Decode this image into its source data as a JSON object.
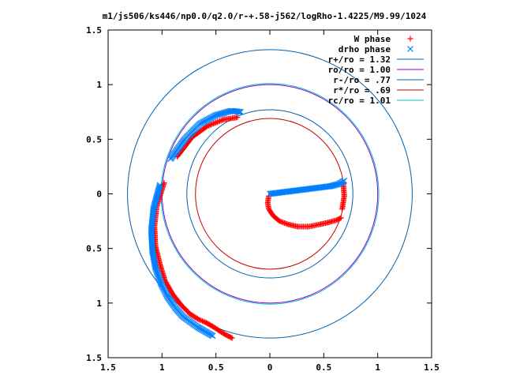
{
  "chart_data": {
    "type": "scatter",
    "title": "m1/js506/ks446/np0.0/q2.0/r-+.58-j562/logRho-1.4225/M9.99/1024",
    "xlabel": "",
    "ylabel": "",
    "xlim": [
      -1.5,
      1.5
    ],
    "ylim": [
      -1.5,
      1.5
    ],
    "x_ticks": [
      -1.5,
      -1,
      -0.5,
      0,
      0.5,
      1,
      1.5
    ],
    "y_ticks": [
      -1.5,
      -1,
      -0.5,
      0,
      0.5,
      1,
      1.5
    ],
    "x_tick_labels": [
      "1.5",
      "1",
      "0.5",
      "0",
      "0.5",
      "1",
      "1.5"
    ],
    "y_tick_labels": [
      "1.5",
      "1",
      "0.5",
      "0",
      "0.5",
      "1",
      "1.5"
    ],
    "grid": false,
    "legend_position": "top-right",
    "series": [
      {
        "name": "W phase",
        "marker": "plus",
        "color": "#ff0000",
        "x": [
          0.66,
          0.62,
          0.55,
          0.46,
          0.36,
          0.26,
          0.17,
          0.09,
          0.03,
          -0.01,
          -0.02,
          -0.01,
          -0.3,
          -0.43,
          -0.58,
          -0.72,
          -0.86,
          -0.98,
          -1.05,
          -1.07,
          -1.06,
          -1.02,
          -0.97,
          -0.9,
          -0.82,
          -0.74,
          -0.66,
          -0.59,
          -0.52,
          -0.46,
          -0.41,
          -0.35,
          0.68,
          0.69,
          0.67
        ],
        "y": [
          -0.22,
          -0.24,
          -0.26,
          -0.28,
          -0.3,
          -0.3,
          -0.28,
          -0.25,
          -0.2,
          -0.14,
          -0.08,
          -0.02,
          0.7,
          0.68,
          0.62,
          0.52,
          0.34,
          0.1,
          -0.12,
          -0.3,
          -0.48,
          -0.64,
          -0.8,
          -0.92,
          -1.02,
          -1.1,
          -1.15,
          -1.18,
          -1.22,
          -1.26,
          -1.29,
          -1.32,
          0.1,
          -0.02,
          -0.14
        ]
      },
      {
        "name": "drho phase",
        "marker": "cross",
        "color": "#0080ff",
        "x": [
          0,
          0.08,
          0.16,
          0.24,
          0.32,
          0.4,
          0.48,
          0.56,
          0.64,
          0.69,
          -0.27,
          -0.36,
          -0.5,
          -0.65,
          -0.79,
          -0.92,
          -1.02,
          -1.08,
          -1.1,
          -1.09,
          -1.06,
          -1.01,
          -0.95,
          -0.88,
          -0.81,
          -0.74,
          -0.67,
          -0.6,
          -0.53
        ],
        "y": [
          0,
          0.01,
          0.02,
          0.03,
          0.04,
          0.05,
          0.06,
          0.07,
          0.09,
          0.12,
          0.75,
          0.76,
          0.72,
          0.64,
          0.5,
          0.32,
          0.08,
          -0.14,
          -0.34,
          -0.52,
          -0.68,
          -0.82,
          -0.94,
          -1.04,
          -1.12,
          -1.17,
          -1.22,
          -1.26,
          -1.3
        ]
      }
    ],
    "circles": [
      {
        "name": "r+/ro = 1.32",
        "radius": 1.32,
        "color": "#0060ad"
      },
      {
        "name": "ro/ro = 1.00",
        "radius": 1.0,
        "color": "#9400d3"
      },
      {
        "name": "r-/ro = .77",
        "radius": 0.77,
        "color": "#0060ad"
      },
      {
        "name": "r*/ro = .69",
        "radius": 0.69,
        "color": "#cc0000"
      },
      {
        "name": "rc/ro = 1.01",
        "radius": 1.01,
        "color": "#00c0c0"
      }
    ]
  }
}
